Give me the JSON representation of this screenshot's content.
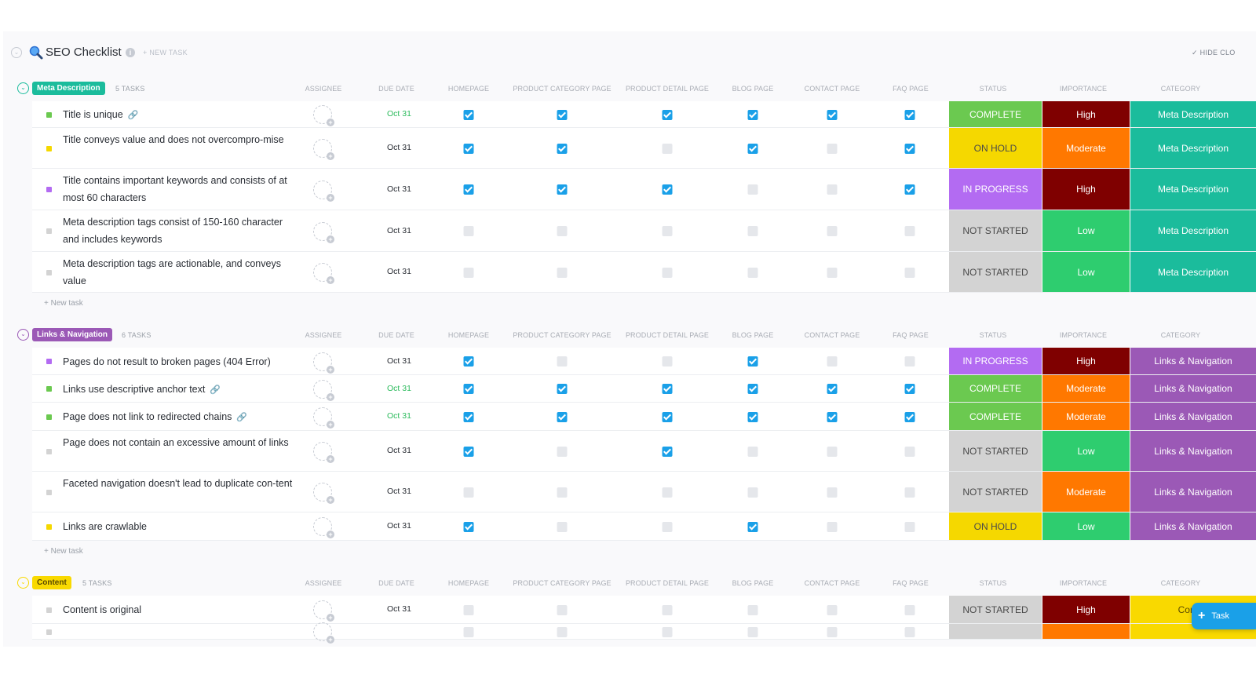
{
  "header": {
    "title": "SEO Checklist",
    "new_task": "+ NEW TASK",
    "hide": "✓  HIDE CLO"
  },
  "columns": {
    "assignee": "ASSIGNEE",
    "due": "DUE DATE",
    "homepage": "HOMEPAGE",
    "category_page": "PRODUCT CATEGORY PAGE",
    "detail_page": "PRODUCT DETAIL PAGE",
    "blog_page": "BLOG PAGE",
    "contact_page": "CONTACT PAGE",
    "faq_page": "FAQ PAGE",
    "status": "STATUS",
    "importance": "IMPORTANCE",
    "category": "CATEGORY"
  },
  "colors": {
    "complete": "#6bc950",
    "on_hold": "#f5d800",
    "in_progress": "#b36bf2",
    "not_started": "#d3d3d3",
    "high": "#7f0000",
    "moderate": "#ff7800",
    "low": "#2ecd6f",
    "meta": "#1bbc9c",
    "links": "#9b59b6",
    "content": "#f9d900"
  },
  "groups": [
    {
      "tag": "Meta Description",
      "tag_color": "#1bbc9c",
      "count": "5 TASKS",
      "new_task": "+ New task",
      "tasks": [
        {
          "name": "Title is unique",
          "link": true,
          "sq": "#6bc950",
          "due": "Oct 31",
          "due_green": true,
          "checks": [
            1,
            1,
            1,
            1,
            1,
            1
          ],
          "status": "COMPLETE",
          "status_color": "#6bc950",
          "importance": "High",
          "importance_color": "#7f0000",
          "category": "Meta Description",
          "category_color": "#1bbc9c",
          "h": 34
        },
        {
          "name": "Title conveys value and does not overcompro-mise",
          "link": false,
          "sq": "#f5d800",
          "due": "Oct 31",
          "due_green": false,
          "checks": [
            1,
            1,
            0,
            1,
            0,
            1
          ],
          "status": "ON HOLD",
          "status_color": "#f5d800",
          "status_dark": true,
          "importance": "Moderate",
          "importance_color": "#ff7800",
          "category": "Meta Description",
          "category_color": "#1bbc9c",
          "h": 52
        },
        {
          "name": "Title contains important keywords and consists of at most 60 characters",
          "link": false,
          "sq": "#b36bf2",
          "due": "Oct 31",
          "due_green": false,
          "checks": [
            1,
            1,
            1,
            0,
            0,
            1
          ],
          "status": "IN PROGRESS",
          "status_color": "#b36bf2",
          "importance": "High",
          "importance_color": "#7f0000",
          "category": "Meta Description",
          "category_color": "#1bbc9c",
          "h": 53
        },
        {
          "name": "Meta description tags consist of 150-160 character and includes keywords",
          "link": false,
          "sq": "#d3d3d3",
          "due": "Oct 31",
          "due_green": false,
          "checks": [
            0,
            0,
            0,
            0,
            0,
            0
          ],
          "status": "NOT STARTED",
          "status_color": "#d3d3d3",
          "status_dark": true,
          "importance": "Low",
          "importance_color": "#2ecd6f",
          "category": "Meta Description",
          "category_color": "#1bbc9c",
          "h": 53
        },
        {
          "name": "Meta description tags are actionable, and conveys value",
          "link": false,
          "sq": "#d3d3d3",
          "due": "Oct 31",
          "due_green": false,
          "checks": [
            0,
            0,
            0,
            0,
            0,
            0
          ],
          "status": "NOT STARTED",
          "status_color": "#d3d3d3",
          "status_dark": true,
          "importance": "Low",
          "importance_color": "#2ecd6f",
          "category": "Meta Description",
          "category_color": "#1bbc9c",
          "h": 52
        }
      ]
    },
    {
      "tag": "Links & Navigation",
      "tag_color": "#9b59b6",
      "count": "6 TASKS",
      "new_task": "+ New task",
      "tasks": [
        {
          "name": "Pages do not result to broken pages (404 Error)",
          "link": false,
          "sq": "#b36bf2",
          "due": "Oct 31",
          "due_green": false,
          "checks": [
            1,
            0,
            0,
            1,
            0,
            0
          ],
          "status": "IN PROGRESS",
          "status_color": "#b36bf2",
          "importance": "High",
          "importance_color": "#7f0000",
          "category": "Links & Navigation",
          "category_color": "#9b59b6",
          "h": 35
        },
        {
          "name": "Links use descriptive anchor text",
          "link": true,
          "sq": "#6bc950",
          "due": "Oct 31",
          "due_green": true,
          "checks": [
            1,
            1,
            1,
            1,
            1,
            1
          ],
          "status": "COMPLETE",
          "status_color": "#6bc950",
          "importance": "Moderate",
          "importance_color": "#ff7800",
          "category": "Links & Navigation",
          "category_color": "#9b59b6",
          "h": 35
        },
        {
          "name": "Page does not link to redirected chains",
          "link": true,
          "sq": "#6bc950",
          "due": "Oct 31",
          "due_green": true,
          "checks": [
            1,
            1,
            1,
            1,
            1,
            1
          ],
          "status": "COMPLETE",
          "status_color": "#6bc950",
          "importance": "Moderate",
          "importance_color": "#ff7800",
          "category": "Links & Navigation",
          "category_color": "#9b59b6",
          "h": 36
        },
        {
          "name": "Page does not contain an excessive amount of links",
          "link": false,
          "sq": "#d3d3d3",
          "due": "Oct 31",
          "due_green": false,
          "checks": [
            1,
            0,
            1,
            0,
            0,
            0
          ],
          "status": "NOT STARTED",
          "status_color": "#d3d3d3",
          "status_dark": true,
          "importance": "Low",
          "importance_color": "#2ecd6f",
          "category": "Links & Navigation",
          "category_color": "#9b59b6",
          "h": 52
        },
        {
          "name": "Faceted navigation doesn't lead to duplicate con-tent",
          "link": false,
          "sq": "#d3d3d3",
          "due": "Oct 31",
          "due_green": false,
          "checks": [
            0,
            0,
            0,
            0,
            0,
            0
          ],
          "status": "NOT STARTED",
          "status_color": "#d3d3d3",
          "status_dark": true,
          "importance": "Moderate",
          "importance_color": "#ff7800",
          "category": "Links & Navigation",
          "category_color": "#9b59b6",
          "h": 52
        },
        {
          "name": "Links are crawlable",
          "link": false,
          "sq": "#f5d800",
          "due": "Oct 31",
          "due_green": false,
          "checks": [
            1,
            0,
            0,
            1,
            0,
            0
          ],
          "status": "ON HOLD",
          "status_color": "#f5d800",
          "status_dark": true,
          "importance": "Low",
          "importance_color": "#2ecd6f",
          "category": "Links & Navigation",
          "category_color": "#9b59b6",
          "h": 36
        }
      ]
    },
    {
      "tag": "Content",
      "tag_color": "#f9d900",
      "count": "5 TASKS",
      "new_task": "",
      "tasks": [
        {
          "name": "Content is original",
          "link": false,
          "sq": "#d3d3d3",
          "due": "Oct 31",
          "due_green": false,
          "checks": [
            0,
            0,
            0,
            0,
            0,
            0
          ],
          "status": "NOT STARTED",
          "status_color": "#d3d3d3",
          "status_dark": true,
          "importance": "High",
          "importance_color": "#7f0000",
          "category": "Conten",
          "category_color": "#f9d900",
          "category_dark": true,
          "h": 36
        },
        {
          "name": "",
          "link": false,
          "sq": "#d3d3d3",
          "due": "",
          "due_green": false,
          "checks": [
            0,
            0,
            0,
            0,
            0,
            0
          ],
          "status": "",
          "status_color": "#d3d3d3",
          "importance": "",
          "importance_color": "#ff7800",
          "category": "",
          "category_color": "#f9d900",
          "h": 20,
          "clipped": true
        }
      ]
    }
  ],
  "fab": {
    "label": "Task",
    "plus": "+"
  }
}
